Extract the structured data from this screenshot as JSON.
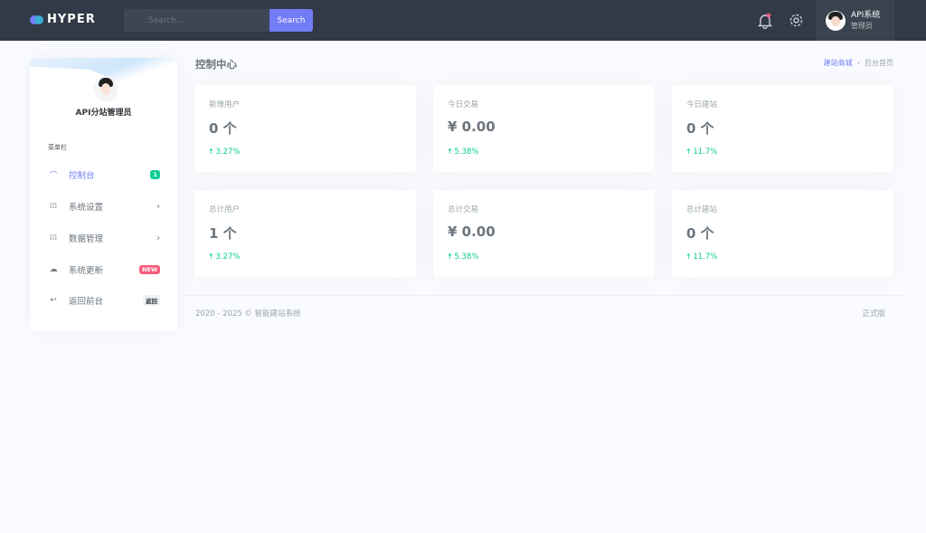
{
  "header": {
    "logo": "HYPER",
    "search_placeholder": "Search...",
    "search_button": "Search",
    "user_name": "API系统",
    "user_role": "管理员"
  },
  "sidebar": {
    "profile_name": "API分站管理员",
    "menu_label": "菜单栏",
    "items": [
      {
        "label": "控制台",
        "icon": "dashboard-icon",
        "badge": "1",
        "active": true
      },
      {
        "label": "系统设置",
        "icon": "grid-icon",
        "chevron": true
      },
      {
        "label": "数据管理",
        "icon": "grid-icon",
        "chevron": true
      },
      {
        "label": "系统更新",
        "icon": "cloud-icon",
        "badge": "NEW"
      },
      {
        "label": "返回前台",
        "icon": "return-icon",
        "badge": "返回"
      }
    ]
  },
  "page": {
    "title": "控制中心",
    "breadcrumb": [
      "建站商城",
      "后台首页"
    ]
  },
  "cards": [
    {
      "label": "新增用户",
      "value": "0 个",
      "change": "3.27%"
    },
    {
      "label": "今日交易",
      "value": "¥ 0.00",
      "change": "5.38%"
    },
    {
      "label": "今日建站",
      "value": "0 个",
      "change": "11.7%"
    },
    {
      "label": "总计用户",
      "value": "1 个",
      "change": "3.27%"
    },
    {
      "label": "总计交易",
      "value": "¥ 0.00",
      "change": "5.38%"
    },
    {
      "label": "总计建站",
      "value": "0 个",
      "change": "11.7%"
    }
  ],
  "footer": {
    "copyright": "2020 - 2025 © 智能建站系统",
    "version": "正式版"
  },
  "colors": {
    "accent": "#727cf5",
    "success": "#0acf97",
    "danger": "#fa5c7c",
    "topbar": "#313a46"
  }
}
